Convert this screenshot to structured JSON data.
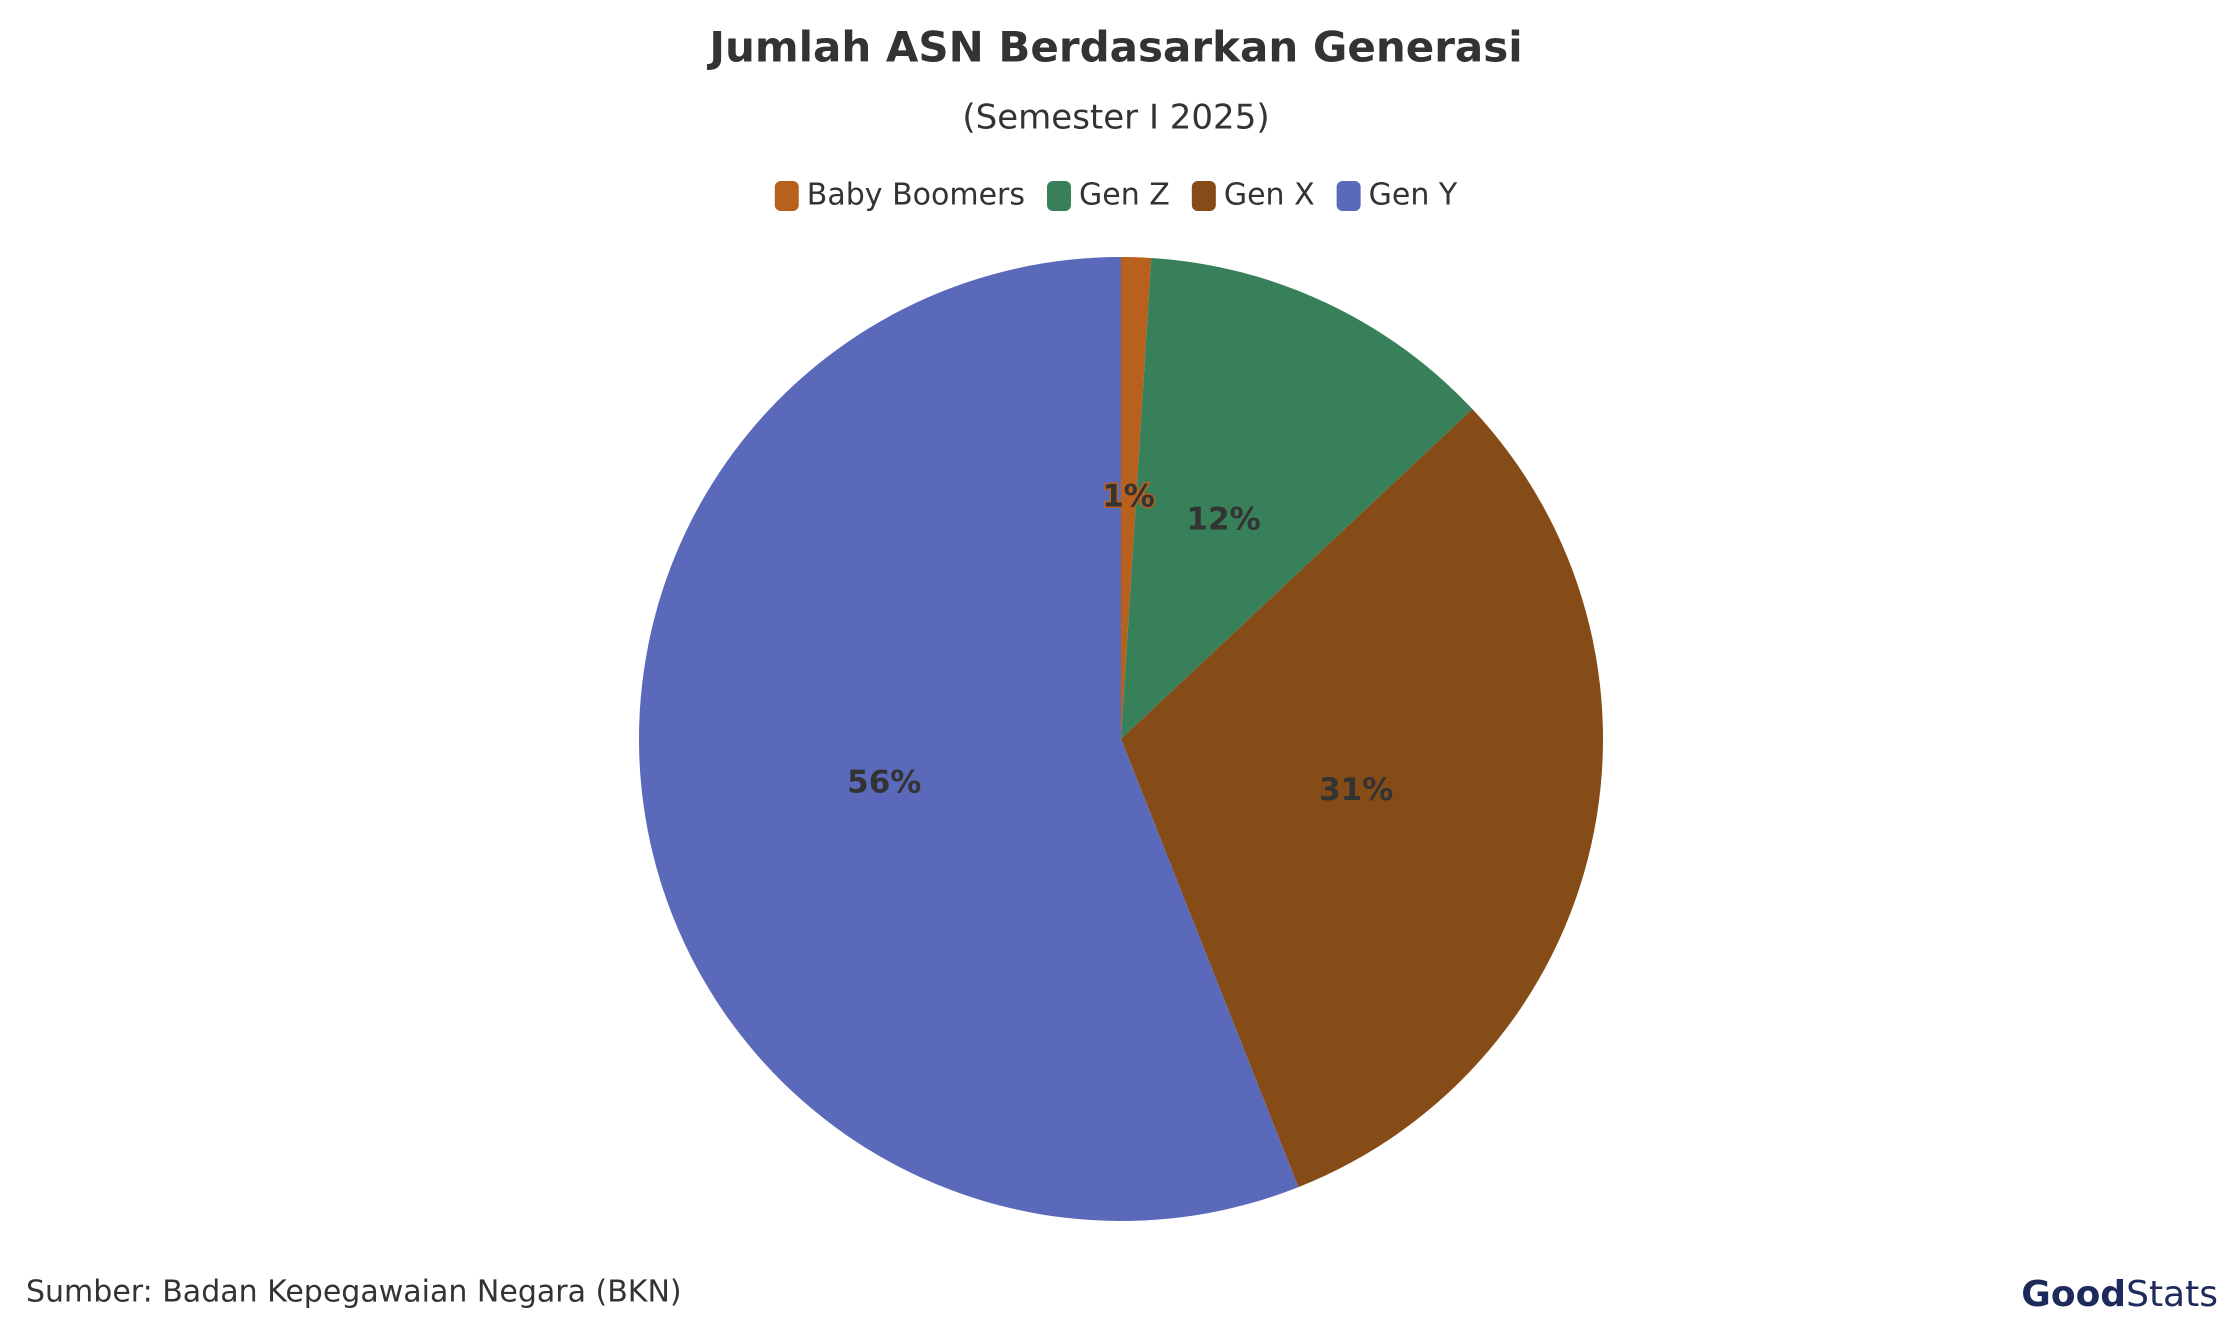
{
  "chart_data": {
    "type": "pie",
    "title": "Jumlah ASN Berdasarkan Generasi",
    "subtitle": "(Semester I 2025)",
    "categories": [
      "Baby Boomers",
      "Gen Z",
      "Gen X",
      "Gen Y"
    ],
    "values": [
      1,
      12,
      31,
      56
    ],
    "value_labels": [
      "1%",
      "12%",
      "31%",
      "56%"
    ],
    "colors": [
      "#b8601d",
      "#37805a",
      "#854c18",
      "#5b69ba"
    ],
    "legend": "top",
    "source": "Sumber: Badan Kepegawaian Negara (BKN)",
    "logo": {
      "bold": "Good",
      "light": "Stats"
    }
  }
}
